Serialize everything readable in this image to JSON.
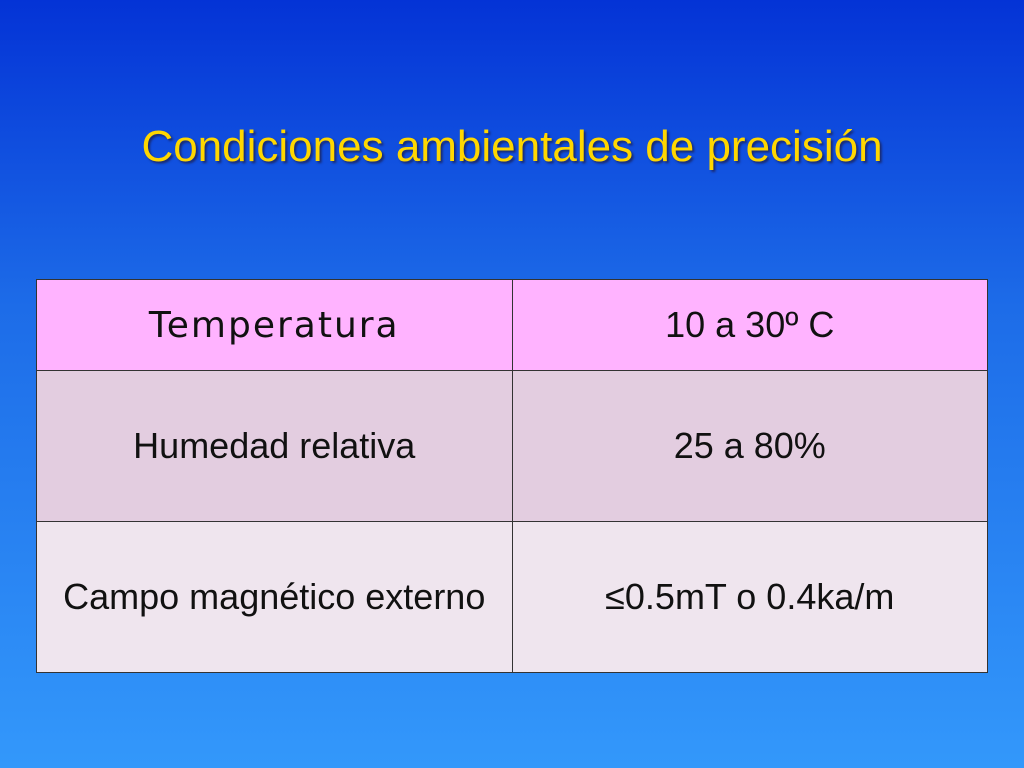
{
  "header": {
    "title": "Condiciones ambientales de precisión"
  },
  "table": {
    "rows": [
      [
        "Temperatura",
        "10 a 30º C"
      ],
      [
        "Humedad relativa",
        "25 a 80%"
      ],
      [
        "Campo magnético externo",
        "≤0.5mT o 0.4ka/m"
      ]
    ]
  }
}
